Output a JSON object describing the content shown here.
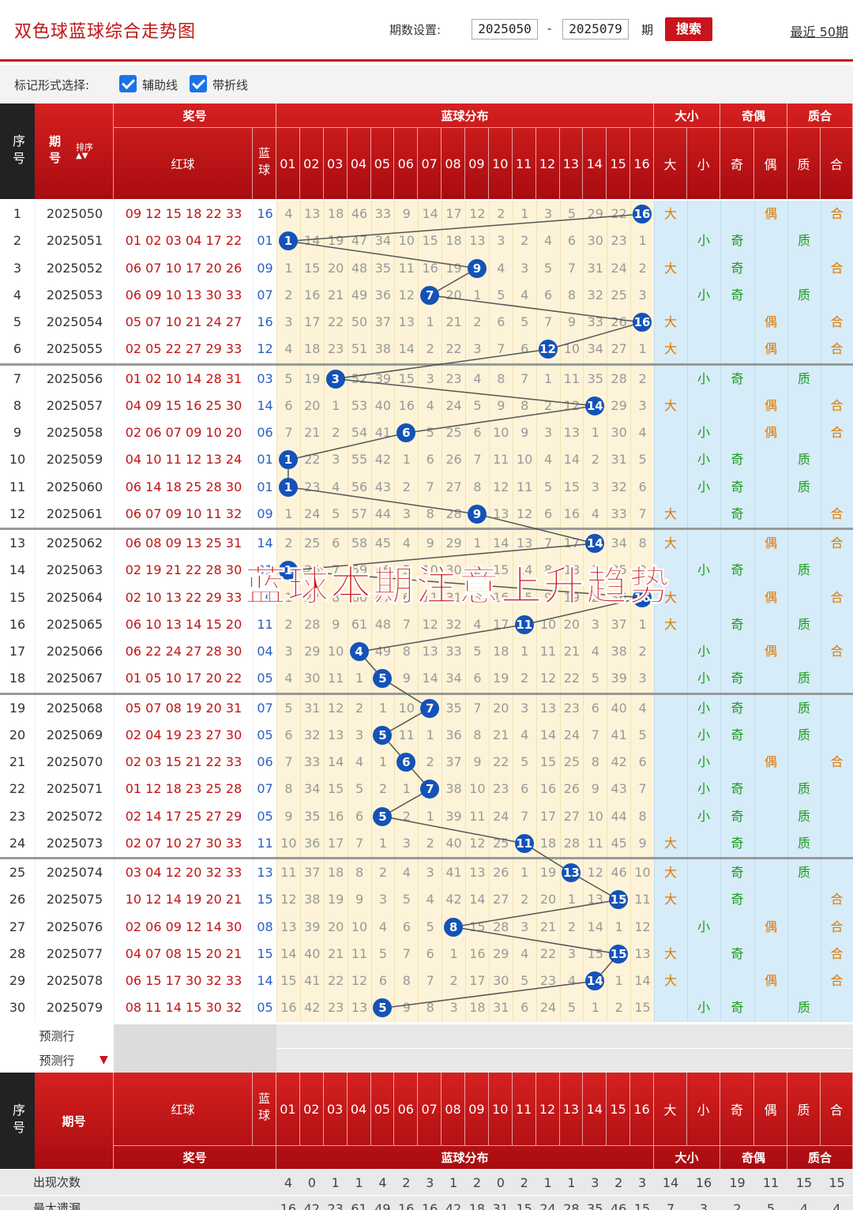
{
  "header": {
    "title": "双色球蓝球综合走势图",
    "period_label": "期数设置:",
    "period_from": "2025050",
    "period_dash": "-",
    "period_to": "2025079",
    "period_unit": "期",
    "search_label": "搜索",
    "recent_label": "最近 50期"
  },
  "options": {
    "label": "标记形式选择:",
    "aux_line": "辅助线",
    "fold_line": "带折线"
  },
  "table_header": {
    "seq": "序号",
    "issue": "期号",
    "sort": "排序",
    "prize": "奖号",
    "red": "红球",
    "blue": "蓝球",
    "blue_dist": "蓝球分布",
    "size": "大小",
    "big": "大",
    "small": "小",
    "parity": "奇偶",
    "odd": "奇",
    "even": "偶",
    "prime": "质合",
    "pri": "质",
    "comp": "合",
    "numbers": [
      "01",
      "02",
      "03",
      "04",
      "05",
      "06",
      "07",
      "08",
      "09",
      "10",
      "11",
      "12",
      "13",
      "14",
      "15",
      "16"
    ]
  },
  "rows": [
    {
      "seq": "1",
      "issue": "2025050",
      "red": "09 12 15 18 22 33",
      "blue": "16",
      "dist": [
        "4",
        "13",
        "18",
        "46",
        "33",
        "9",
        "14",
        "17",
        "12",
        "2",
        "1",
        "3",
        "5",
        "29",
        "22",
        "16"
      ],
      "size": "大",
      "parity": "偶",
      "prime": "合"
    },
    {
      "seq": "2",
      "issue": "2025051",
      "red": "01 02 03 04 17 22",
      "blue": "01",
      "dist": [
        "1",
        "14",
        "19",
        "47",
        "34",
        "10",
        "15",
        "18",
        "13",
        "3",
        "2",
        "4",
        "6",
        "30",
        "23",
        "1"
      ],
      "size": "小",
      "parity": "奇",
      "prime": "质"
    },
    {
      "seq": "3",
      "issue": "2025052",
      "red": "06 07 10 17 20 26",
      "blue": "09",
      "dist": [
        "1",
        "15",
        "20",
        "48",
        "35",
        "11",
        "16",
        "19",
        "9",
        "4",
        "3",
        "5",
        "7",
        "31",
        "24",
        "2"
      ],
      "size": "大",
      "parity": "奇",
      "prime": "合"
    },
    {
      "seq": "4",
      "issue": "2025053",
      "red": "06 09 10 13 30 33",
      "blue": "07",
      "dist": [
        "2",
        "16",
        "21",
        "49",
        "36",
        "12",
        "7",
        "20",
        "1",
        "5",
        "4",
        "6",
        "8",
        "32",
        "25",
        "3"
      ],
      "size": "小",
      "parity": "奇",
      "prime": "质"
    },
    {
      "seq": "5",
      "issue": "2025054",
      "red": "05 07 10 21 24 27",
      "blue": "16",
      "dist": [
        "3",
        "17",
        "22",
        "50",
        "37",
        "13",
        "1",
        "21",
        "2",
        "6",
        "5",
        "7",
        "9",
        "33",
        "26",
        "16"
      ],
      "size": "大",
      "parity": "偶",
      "prime": "合"
    },
    {
      "seq": "6",
      "issue": "2025055",
      "red": "02 05 22 27 29 33",
      "blue": "12",
      "dist": [
        "4",
        "18",
        "23",
        "51",
        "38",
        "14",
        "2",
        "22",
        "3",
        "7",
        "6",
        "12",
        "10",
        "34",
        "27",
        "1"
      ],
      "size": "大",
      "parity": "偶",
      "prime": "合"
    },
    {
      "seq": "7",
      "issue": "2025056",
      "red": "01 02 10 14 28 31",
      "blue": "03",
      "dist": [
        "5",
        "19",
        "3",
        "52",
        "39",
        "15",
        "3",
        "23",
        "4",
        "8",
        "7",
        "1",
        "11",
        "35",
        "28",
        "2"
      ],
      "size": "小",
      "parity": "奇",
      "prime": "质"
    },
    {
      "seq": "8",
      "issue": "2025057",
      "red": "04 09 15 16 25 30",
      "blue": "14",
      "dist": [
        "6",
        "20",
        "1",
        "53",
        "40",
        "16",
        "4",
        "24",
        "5",
        "9",
        "8",
        "2",
        "12",
        "14",
        "29",
        "3"
      ],
      "size": "大",
      "parity": "偶",
      "prime": "合"
    },
    {
      "seq": "9",
      "issue": "2025058",
      "red": "02 06 07 09 10 20",
      "blue": "06",
      "dist": [
        "7",
        "21",
        "2",
        "54",
        "41",
        "6",
        "5",
        "25",
        "6",
        "10",
        "9",
        "3",
        "13",
        "1",
        "30",
        "4"
      ],
      "size": "小",
      "parity": "偶",
      "prime": "合"
    },
    {
      "seq": "10",
      "issue": "2025059",
      "red": "04 10 11 12 13 24",
      "blue": "01",
      "dist": [
        "1",
        "22",
        "3",
        "55",
        "42",
        "1",
        "6",
        "26",
        "7",
        "11",
        "10",
        "4",
        "14",
        "2",
        "31",
        "5"
      ],
      "size": "小",
      "parity": "奇",
      "prime": "质"
    },
    {
      "seq": "11",
      "issue": "2025060",
      "red": "06 14 18 25 28 30",
      "blue": "01",
      "dist": [
        "1",
        "23",
        "4",
        "56",
        "43",
        "2",
        "7",
        "27",
        "8",
        "12",
        "11",
        "5",
        "15",
        "3",
        "32",
        "6"
      ],
      "size": "小",
      "parity": "奇",
      "prime": "质"
    },
    {
      "seq": "12",
      "issue": "2025061",
      "red": "06 07 09 10 11 32",
      "blue": "09",
      "dist": [
        "1",
        "24",
        "5",
        "57",
        "44",
        "3",
        "8",
        "28",
        "9",
        "13",
        "12",
        "6",
        "16",
        "4",
        "33",
        "7"
      ],
      "size": "大",
      "parity": "奇",
      "prime": "合"
    },
    {
      "seq": "13",
      "issue": "2025062",
      "red": "06 08 09 13 25 31",
      "blue": "14",
      "dist": [
        "2",
        "25",
        "6",
        "58",
        "45",
        "4",
        "9",
        "29",
        "1",
        "14",
        "13",
        "7",
        "17",
        "14",
        "34",
        "8"
      ],
      "size": "大",
      "parity": "偶",
      "prime": "合"
    },
    {
      "seq": "14",
      "issue": "2025063",
      "red": "02 19 21 22 28 30",
      "blue": "01",
      "dist": [
        "1",
        "26",
        "7",
        "59",
        "46",
        "5",
        "10",
        "30",
        "2",
        "15",
        "14",
        "8",
        "18",
        "1",
        "35",
        "9"
      ],
      "size": "小",
      "parity": "奇",
      "prime": "质"
    },
    {
      "seq": "15",
      "issue": "2025064",
      "red": "02 10 13 22 29 33",
      "blue": "16",
      "dist": [
        "1",
        "27",
        "8",
        "60",
        "47",
        "6",
        "11",
        "31",
        "3",
        "16",
        "15",
        "9",
        "19",
        "2",
        "36",
        "16"
      ],
      "size": "大",
      "parity": "偶",
      "prime": "合"
    },
    {
      "seq": "16",
      "issue": "2025065",
      "red": "06 10 13 14 15 20",
      "blue": "11",
      "dist": [
        "2",
        "28",
        "9",
        "61",
        "48",
        "7",
        "12",
        "32",
        "4",
        "17",
        "11",
        "10",
        "20",
        "3",
        "37",
        "1"
      ],
      "size": "大",
      "parity": "奇",
      "prime": "质"
    },
    {
      "seq": "17",
      "issue": "2025066",
      "red": "06 22 24 27 28 30",
      "blue": "04",
      "dist": [
        "3",
        "29",
        "10",
        "4",
        "49",
        "8",
        "13",
        "33",
        "5",
        "18",
        "1",
        "11",
        "21",
        "4",
        "38",
        "2"
      ],
      "size": "小",
      "parity": "偶",
      "prime": "合"
    },
    {
      "seq": "18",
      "issue": "2025067",
      "red": "01 05 10 17 20 22",
      "blue": "05",
      "dist": [
        "4",
        "30",
        "11",
        "1",
        "5",
        "9",
        "14",
        "34",
        "6",
        "19",
        "2",
        "12",
        "22",
        "5",
        "39",
        "3"
      ],
      "size": "小",
      "parity": "奇",
      "prime": "质"
    },
    {
      "seq": "19",
      "issue": "2025068",
      "red": "05 07 08 19 20 31",
      "blue": "07",
      "dist": [
        "5",
        "31",
        "12",
        "2",
        "1",
        "10",
        "7",
        "35",
        "7",
        "20",
        "3",
        "13",
        "23",
        "6",
        "40",
        "4"
      ],
      "size": "小",
      "parity": "奇",
      "prime": "质"
    },
    {
      "seq": "20",
      "issue": "2025069",
      "red": "02 04 19 23 27 30",
      "blue": "05",
      "dist": [
        "6",
        "32",
        "13",
        "3",
        "5",
        "11",
        "1",
        "36",
        "8",
        "21",
        "4",
        "14",
        "24",
        "7",
        "41",
        "5"
      ],
      "size": "小",
      "parity": "奇",
      "prime": "质"
    },
    {
      "seq": "21",
      "issue": "2025070",
      "red": "02 03 15 21 22 33",
      "blue": "06",
      "dist": [
        "7",
        "33",
        "14",
        "4",
        "1",
        "6",
        "2",
        "37",
        "9",
        "22",
        "5",
        "15",
        "25",
        "8",
        "42",
        "6"
      ],
      "size": "小",
      "parity": "偶",
      "prime": "合"
    },
    {
      "seq": "22",
      "issue": "2025071",
      "red": "01 12 18 23 25 28",
      "blue": "07",
      "dist": [
        "8",
        "34",
        "15",
        "5",
        "2",
        "1",
        "7",
        "38",
        "10",
        "23",
        "6",
        "16",
        "26",
        "9",
        "43",
        "7"
      ],
      "size": "小",
      "parity": "奇",
      "prime": "质"
    },
    {
      "seq": "23",
      "issue": "2025072",
      "red": "02 14 17 25 27 29",
      "blue": "05",
      "dist": [
        "9",
        "35",
        "16",
        "6",
        "5",
        "2",
        "1",
        "39",
        "11",
        "24",
        "7",
        "17",
        "27",
        "10",
        "44",
        "8"
      ],
      "size": "小",
      "parity": "奇",
      "prime": "质"
    },
    {
      "seq": "24",
      "issue": "2025073",
      "red": "02 07 10 27 30 33",
      "blue": "11",
      "dist": [
        "10",
        "36",
        "17",
        "7",
        "1",
        "3",
        "2",
        "40",
        "12",
        "25",
        "11",
        "18",
        "28",
        "11",
        "45",
        "9"
      ],
      "size": "大",
      "parity": "奇",
      "prime": "质"
    },
    {
      "seq": "25",
      "issue": "2025074",
      "red": "03 04 12 20 32 33",
      "blue": "13",
      "dist": [
        "11",
        "37",
        "18",
        "8",
        "2",
        "4",
        "3",
        "41",
        "13",
        "26",
        "1",
        "19",
        "13",
        "12",
        "46",
        "10"
      ],
      "size": "大",
      "parity": "奇",
      "prime": "质"
    },
    {
      "seq": "26",
      "issue": "2025075",
      "red": "10 12 14 19 20 21",
      "blue": "15",
      "dist": [
        "12",
        "38",
        "19",
        "9",
        "3",
        "5",
        "4",
        "42",
        "14",
        "27",
        "2",
        "20",
        "1",
        "13",
        "15",
        "11"
      ],
      "size": "大",
      "parity": "奇",
      "prime": "合"
    },
    {
      "seq": "27",
      "issue": "2025076",
      "red": "02 06 09 12 14 30",
      "blue": "08",
      "dist": [
        "13",
        "39",
        "20",
        "10",
        "4",
        "6",
        "5",
        "8",
        "15",
        "28",
        "3",
        "21",
        "2",
        "14",
        "1",
        "12"
      ],
      "size": "小",
      "parity": "偶",
      "prime": "合"
    },
    {
      "seq": "28",
      "issue": "2025077",
      "red": "04 07 08 15 20 21",
      "blue": "15",
      "dist": [
        "14",
        "40",
        "21",
        "11",
        "5",
        "7",
        "6",
        "1",
        "16",
        "29",
        "4",
        "22",
        "3",
        "15",
        "15",
        "13"
      ],
      "size": "大",
      "parity": "奇",
      "prime": "合"
    },
    {
      "seq": "29",
      "issue": "2025078",
      "red": "06 15 17 30 32 33",
      "blue": "14",
      "dist": [
        "15",
        "41",
        "22",
        "12",
        "6",
        "8",
        "7",
        "2",
        "17",
        "30",
        "5",
        "23",
        "4",
        "14",
        "1",
        "14"
      ],
      "size": "大",
      "parity": "偶",
      "prime": "合"
    },
    {
      "seq": "30",
      "issue": "2025079",
      "red": "08 11 14 15 30 32",
      "blue": "05",
      "dist": [
        "16",
        "42",
        "23",
        "13",
        "5",
        "9",
        "8",
        "3",
        "18",
        "31",
        "6",
        "24",
        "5",
        "1",
        "2",
        "15"
      ],
      "size": "小",
      "parity": "奇",
      "prime": "质"
    }
  ],
  "predict": [
    "预测行",
    "预测行"
  ],
  "footer_header": {
    "seq": "序号",
    "issue": "期号",
    "red": "红球",
    "blue": "蓝球",
    "prize": "奖号",
    "blue_dist": "蓝球分布",
    "size": "大小",
    "parity": "奇偶",
    "prime": "质合"
  },
  "stats": [
    {
      "label": "出现次数",
      "values": [
        "4",
        "0",
        "1",
        "1",
        "4",
        "2",
        "3",
        "1",
        "2",
        "0",
        "2",
        "1",
        "1",
        "3",
        "2",
        "3",
        "14",
        "16",
        "19",
        "11",
        "15",
        "15"
      ]
    },
    {
      "label": "最大遗漏",
      "values": [
        "16",
        "42",
        "23",
        "61",
        "49",
        "16",
        "16",
        "42",
        "18",
        "31",
        "15",
        "24",
        "28",
        "35",
        "46",
        "15",
        "7",
        "3",
        "2",
        "5",
        "4",
        "4"
      ]
    }
  ],
  "overlay_text": "蓝球本期注意上升趋势",
  "colors": {
    "brand_red": "#c8141c",
    "ball_blue": "#1452b8",
    "cream": "#fdf3d8",
    "lightblue": "#d6ecf8"
  }
}
